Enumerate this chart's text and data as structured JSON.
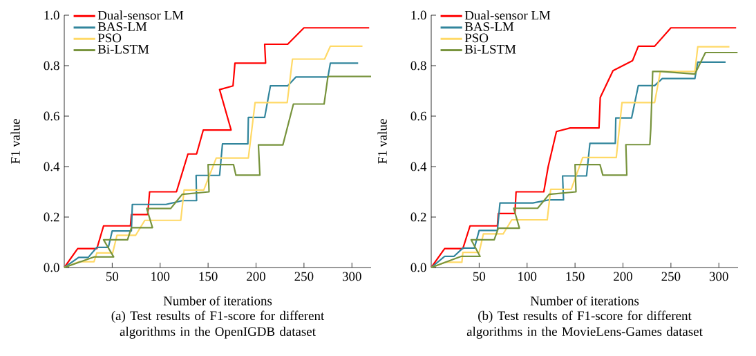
{
  "chart_data": [
    {
      "type": "line",
      "title": "(a) Test results of F1-score for different algorithms in the OpenIGDB dataset",
      "xlabel": "Number of iterations",
      "ylabel": "F1 value",
      "xlim": [
        0,
        320
      ],
      "xticks": [
        50,
        100,
        150,
        200,
        250,
        300
      ],
      "ylim": [
        0,
        1
      ],
      "yticks": [
        {
          "value": 0,
          "label": "0.0"
        },
        {
          "value": 0.2,
          "label": "0.2"
        },
        {
          "value": 0.4,
          "label": "0.4"
        },
        {
          "value": 0.6,
          "label": "0.6"
        },
        {
          "value": 0.8,
          "label": "0.8"
        },
        {
          "value": 1,
          "label": "1.0"
        }
      ],
      "legend": "top left",
      "series": [
        {
          "name": "Dual-sensor LM",
          "color": "#ff0000",
          "x": [
            0,
            14,
            34,
            41,
            69,
            70,
            87,
            89,
            117,
            129,
            138,
            145,
            174,
            162,
            176,
            178,
            210,
            209,
            233,
            250,
            318
          ],
          "values": [
            0,
            0.075,
            0.075,
            0.165,
            0.165,
            0.21,
            0.21,
            0.3,
            0.3,
            0.45,
            0.45,
            0.545,
            0.545,
            0.705,
            0.72,
            0.81,
            0.81,
            0.885,
            0.885,
            0.95,
            0.95
          ]
        },
        {
          "name": "BAS-LM",
          "color": "#31859c",
          "x": [
            0,
            15,
            25,
            34,
            46,
            50,
            70,
            71,
            106,
            123,
            138,
            137.5,
            162,
            165,
            191.5,
            192,
            209,
            215,
            233,
            241.5,
            275,
            277.5,
            306.5
          ],
          "values": [
            0,
            0.04,
            0.04,
            0.08,
            0.08,
            0.145,
            0.145,
            0.25,
            0.25,
            0.265,
            0.265,
            0.365,
            0.365,
            0.49,
            0.49,
            0.595,
            0.595,
            0.72,
            0.72,
            0.755,
            0.755,
            0.81,
            0.81
          ]
        },
        {
          "name": "PSO",
          "color": "#ffd966",
          "x": [
            0,
            15.6,
            31,
            34,
            50.5,
            55,
            74.5,
            84,
            121.5,
            125,
            145.5,
            158.5,
            192,
            199,
            232.5,
            238,
            271.5,
            277.5,
            311
          ],
          "values": [
            0,
            0.023,
            0.023,
            0.058,
            0.058,
            0.128,
            0.128,
            0.187,
            0.187,
            0.307,
            0.307,
            0.434,
            0.434,
            0.654,
            0.654,
            0.826,
            0.826,
            0.877,
            0.877
          ]
        },
        {
          "name": "Bi-LSTM",
          "color": "#77933c",
          "x": [
            0,
            31,
            51.5,
            41,
            66,
            70,
            92,
            86,
            111,
            123,
            151,
            150,
            176.5,
            179,
            204,
            202.5,
            228,
            239,
            271,
            275,
            320
          ],
          "values": [
            0,
            0.042,
            0.042,
            0.11,
            0.11,
            0.158,
            0.158,
            0.234,
            0.234,
            0.29,
            0.3,
            0.408,
            0.408,
            0.366,
            0.366,
            0.486,
            0.486,
            0.648,
            0.648,
            0.757,
            0.757
          ]
        }
      ]
    },
    {
      "type": "line",
      "title": "(b) Test results of F1-score for different algorithms in the MovieLens-Games dataset",
      "xlabel": "Number of iterations",
      "ylabel": "F1 value",
      "xlim": [
        0,
        320
      ],
      "xticks": [
        50,
        100,
        150,
        200,
        250,
        300
      ],
      "ylim": [
        0,
        1
      ],
      "yticks": [
        {
          "value": 0,
          "label": "0.0"
        },
        {
          "value": 0.2,
          "label": "0.2"
        },
        {
          "value": 0.4,
          "label": "0.4"
        },
        {
          "value": 0.6,
          "label": "0.6"
        },
        {
          "value": 0.8,
          "label": "0.8"
        },
        {
          "value": 1,
          "label": "1.0"
        }
      ],
      "legend": "top left",
      "series": [
        {
          "name": "Dual-sensor LM",
          "color": "#ff0000",
          "x": [
            0,
            14,
            33,
            40.5,
            69,
            70,
            87.3,
            88.5,
            117.4,
            122,
            130.6,
            145,
            175,
            176.3,
            189.6,
            210,
            216,
            233,
            250,
            318
          ],
          "values": [
            0,
            0.075,
            0.075,
            0.165,
            0.165,
            0.214,
            0.214,
            0.3,
            0.3,
            0.4,
            0.539,
            0.553,
            0.553,
            0.674,
            0.78,
            0.82,
            0.877,
            0.877,
            0.95,
            0.95
          ]
        },
        {
          "name": "BAS-LM",
          "color": "#31859c",
          "x": [
            0,
            14,
            23.6,
            33,
            45,
            50,
            69,
            71.7,
            106,
            123,
            138,
            137,
            162,
            165.5,
            192,
            192.5,
            209,
            216,
            233,
            241,
            275,
            278,
            307
          ],
          "values": [
            0,
            0.044,
            0.044,
            0.077,
            0.077,
            0.147,
            0.147,
            0.256,
            0.256,
            0.268,
            0.268,
            0.363,
            0.363,
            0.492,
            0.492,
            0.593,
            0.593,
            0.721,
            0.721,
            0.749,
            0.749,
            0.814,
            0.814
          ]
        },
        {
          "name": "PSO",
          "color": "#ffd966",
          "x": [
            0,
            15,
            32,
            33,
            50,
            54.4,
            75,
            84,
            121,
            124.6,
            146,
            158,
            193,
            199,
            233,
            239,
            275,
            278,
            311
          ],
          "values": [
            0,
            0.021,
            0.021,
            0.06,
            0.06,
            0.133,
            0.133,
            0.189,
            0.189,
            0.31,
            0.31,
            0.436,
            0.436,
            0.654,
            0.654,
            0.777,
            0.777,
            0.875,
            0.875
          ]
        },
        {
          "name": "Bi-LSTM",
          "color": "#77933c",
          "x": [
            0,
            31,
            51,
            41.6,
            65.7,
            70,
            92,
            86,
            111,
            123,
            151,
            150,
            176,
            179,
            204,
            203,
            228,
            229,
            231,
            240,
            275,
            286,
            319.5
          ],
          "values": [
            0,
            0.044,
            0.044,
            0.11,
            0.11,
            0.156,
            0.156,
            0.235,
            0.235,
            0.29,
            0.3,
            0.408,
            0.408,
            0.366,
            0.366,
            0.487,
            0.487,
            0.55,
            0.777,
            0.777,
            0.767,
            0.852,
            0.852
          ]
        }
      ]
    }
  ]
}
